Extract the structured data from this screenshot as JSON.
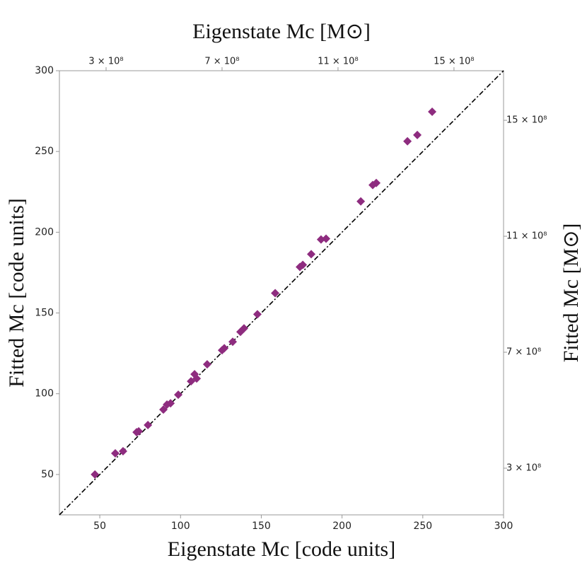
{
  "chart_data": {
    "type": "scatter",
    "x_label": "Eigenstate Mc [code units]",
    "y_label": "Fitted Mc [code units]",
    "x2_label": "Eigenstate Mc [M⊙]",
    "y2_label": "Fitted Mc [M⊙]",
    "color": "#8e2c7f",
    "x": [
      47.0,
      59.6,
      64.4,
      72.8,
      74.1,
      79.8,
      89.4,
      91.6,
      93.8,
      98.6,
      106.5,
      108.7,
      110.0,
      116.5,
      125.7,
      127.1,
      132.3,
      137.1,
      139.3,
      147.6,
      158.6,
      173.9,
      175.7,
      180.9,
      187.0,
      190.1,
      211.6,
      219.0,
      221.2,
      240.5,
      246.6,
      255.8
    ],
    "values": [
      50.0,
      63.1,
      64.4,
      76.2,
      76.7,
      80.6,
      90.2,
      93.3,
      94.1,
      99.4,
      107.7,
      112.1,
      109.4,
      118.2,
      126.9,
      128.2,
      132.2,
      138.3,
      140.5,
      149.2,
      162.3,
      178.5,
      179.8,
      186.4,
      195.5,
      196.0,
      219.1,
      229.2,
      230.5,
      256.3,
      260.2,
      274.6
    ],
    "xlim": [
      25,
      300
    ],
    "xticks": [
      50,
      100,
      150,
      200,
      250,
      300
    ],
    "ylim": [
      25,
      300
    ],
    "yticks": [
      50,
      100,
      150,
      200,
      250,
      300
    ],
    "x2lim": [
      139000000,
      1671000000
    ],
    "x2ticks": [
      {
        "value": 300000000,
        "label": "3 × 10⁸"
      },
      {
        "value": 700000000,
        "label": "7 × 10⁸"
      },
      {
        "value": 1100000000,
        "label": "11 × 10⁸"
      },
      {
        "value": 1500000000,
        "label": "15 × 10⁸"
      }
    ],
    "y2lim": [
      139000000,
      1671000000
    ],
    "y2ticks": [
      {
        "value": 300000000,
        "label": "3 × 10⁸"
      },
      {
        "value": 700000000,
        "label": "7 × 10⁸"
      },
      {
        "value": 1100000000,
        "label": "11 × 10⁸"
      },
      {
        "value": 1500000000,
        "label": "15 × 10⁸"
      }
    ]
  }
}
